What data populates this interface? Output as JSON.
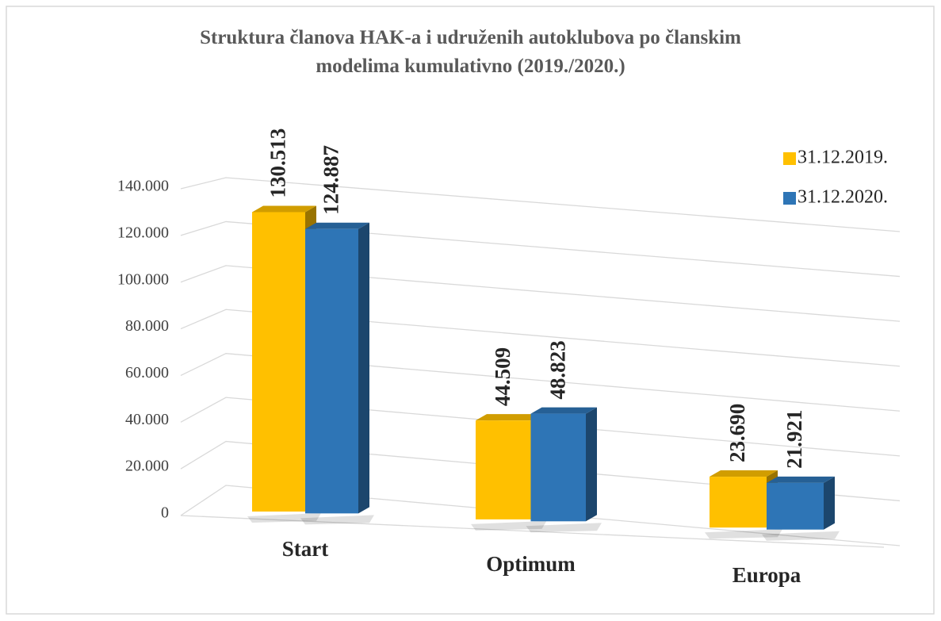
{
  "chart_data": {
    "type": "bar3d",
    "title": "Struktura članova HAK-a i udruženih autoklubova po članskim\nmodelima kumulativno (2019./2020.)",
    "categories": [
      "Start",
      "Optimum",
      "Europa"
    ],
    "series": [
      {
        "name": "31.12.2019.",
        "color": "#ffc000",
        "values": [
          130513,
          44509,
          23690
        ],
        "value_labels": [
          "130.513",
          "44.509",
          "23.690"
        ]
      },
      {
        "name": "31.12.2020.",
        "color": "#2e75b6",
        "values": [
          124887,
          48823,
          21921
        ],
        "value_labels": [
          "124.887",
          "48.823",
          "21.921"
        ]
      }
    ],
    "ylim": [
      0,
      140000
    ],
    "yticks": [
      0,
      {
        "value": 20000,
        "label": "20.000"
      },
      {
        "value": 40000,
        "label": "40.000"
      },
      {
        "value": 60000,
        "label": "60.000"
      },
      {
        "value": 80000,
        "label": "80.000"
      },
      {
        "value": 100000,
        "label": "100.000"
      },
      {
        "value": 120000,
        "label": "120.000"
      },
      {
        "value": 140000,
        "label": "140.000"
      }
    ],
    "grid": true,
    "legend": "top-right"
  }
}
